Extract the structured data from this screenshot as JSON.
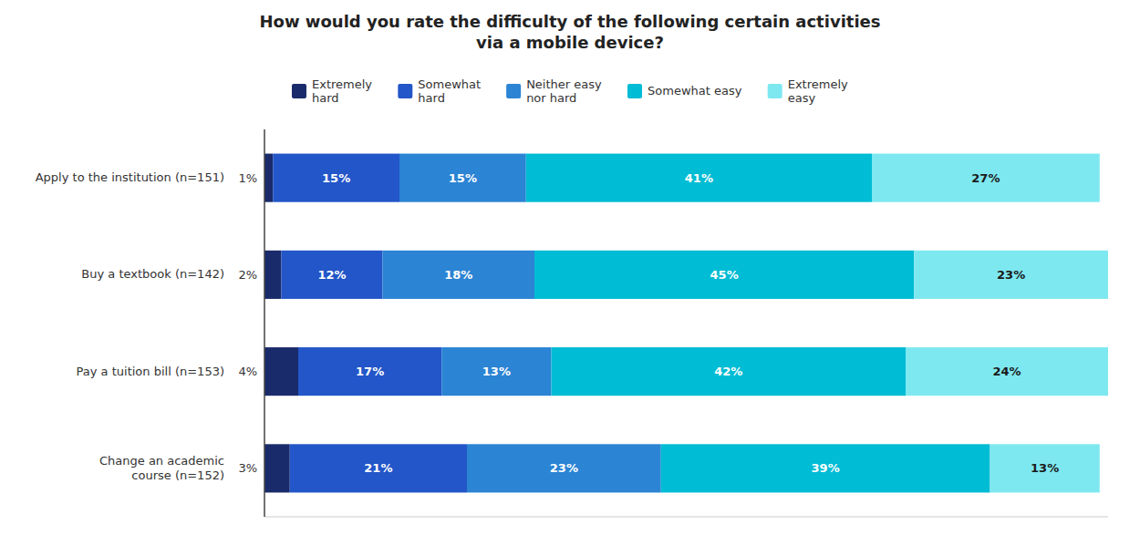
{
  "chart_data": {
    "type": "bar",
    "orientation": "horizontal",
    "stacked": true,
    "title": "How would you rate the difficulty of the following certain activities\nvia a mobile device?",
    "categories": [
      "Apply to the institution (n=151)",
      "Buy a textbook (n=142)",
      "Pay a tuition bill (n=153)",
      "Change an academic\ncourse (n=152)"
    ],
    "series": [
      {
        "name": "Extremely\nhard",
        "color": "#1a2b6b",
        "values": [
          1,
          2,
          4,
          3
        ],
        "value_labels": [
          "1%",
          "2%",
          "4%",
          "3%"
        ]
      },
      {
        "name": "Somewhat\nhard",
        "color": "#2356c8",
        "values": [
          15,
          12,
          17,
          21
        ],
        "value_labels": [
          "15%",
          "12%",
          "17%",
          "21%"
        ]
      },
      {
        "name": "Neither easy\nnor hard",
        "color": "#2b84d4",
        "values": [
          15,
          18,
          13,
          23
        ],
        "value_labels": [
          "15%",
          "18%",
          "13%",
          "23%"
        ]
      },
      {
        "name": "Somewhat easy",
        "color": "#00bcd4",
        "values": [
          41,
          45,
          42,
          39
        ],
        "value_labels": [
          "41%",
          "45%",
          "42%",
          "39%"
        ]
      },
      {
        "name": "Extremely\neasy",
        "color": "#7ee8f0",
        "values": [
          27,
          23,
          24,
          13
        ],
        "value_labels": [
          "27%",
          "23%",
          "24%",
          "13%"
        ]
      }
    ],
    "xlim": [
      0,
      100
    ],
    "grid": false,
    "legend": "top",
    "data_labels": true,
    "tick_labels": "y"
  }
}
